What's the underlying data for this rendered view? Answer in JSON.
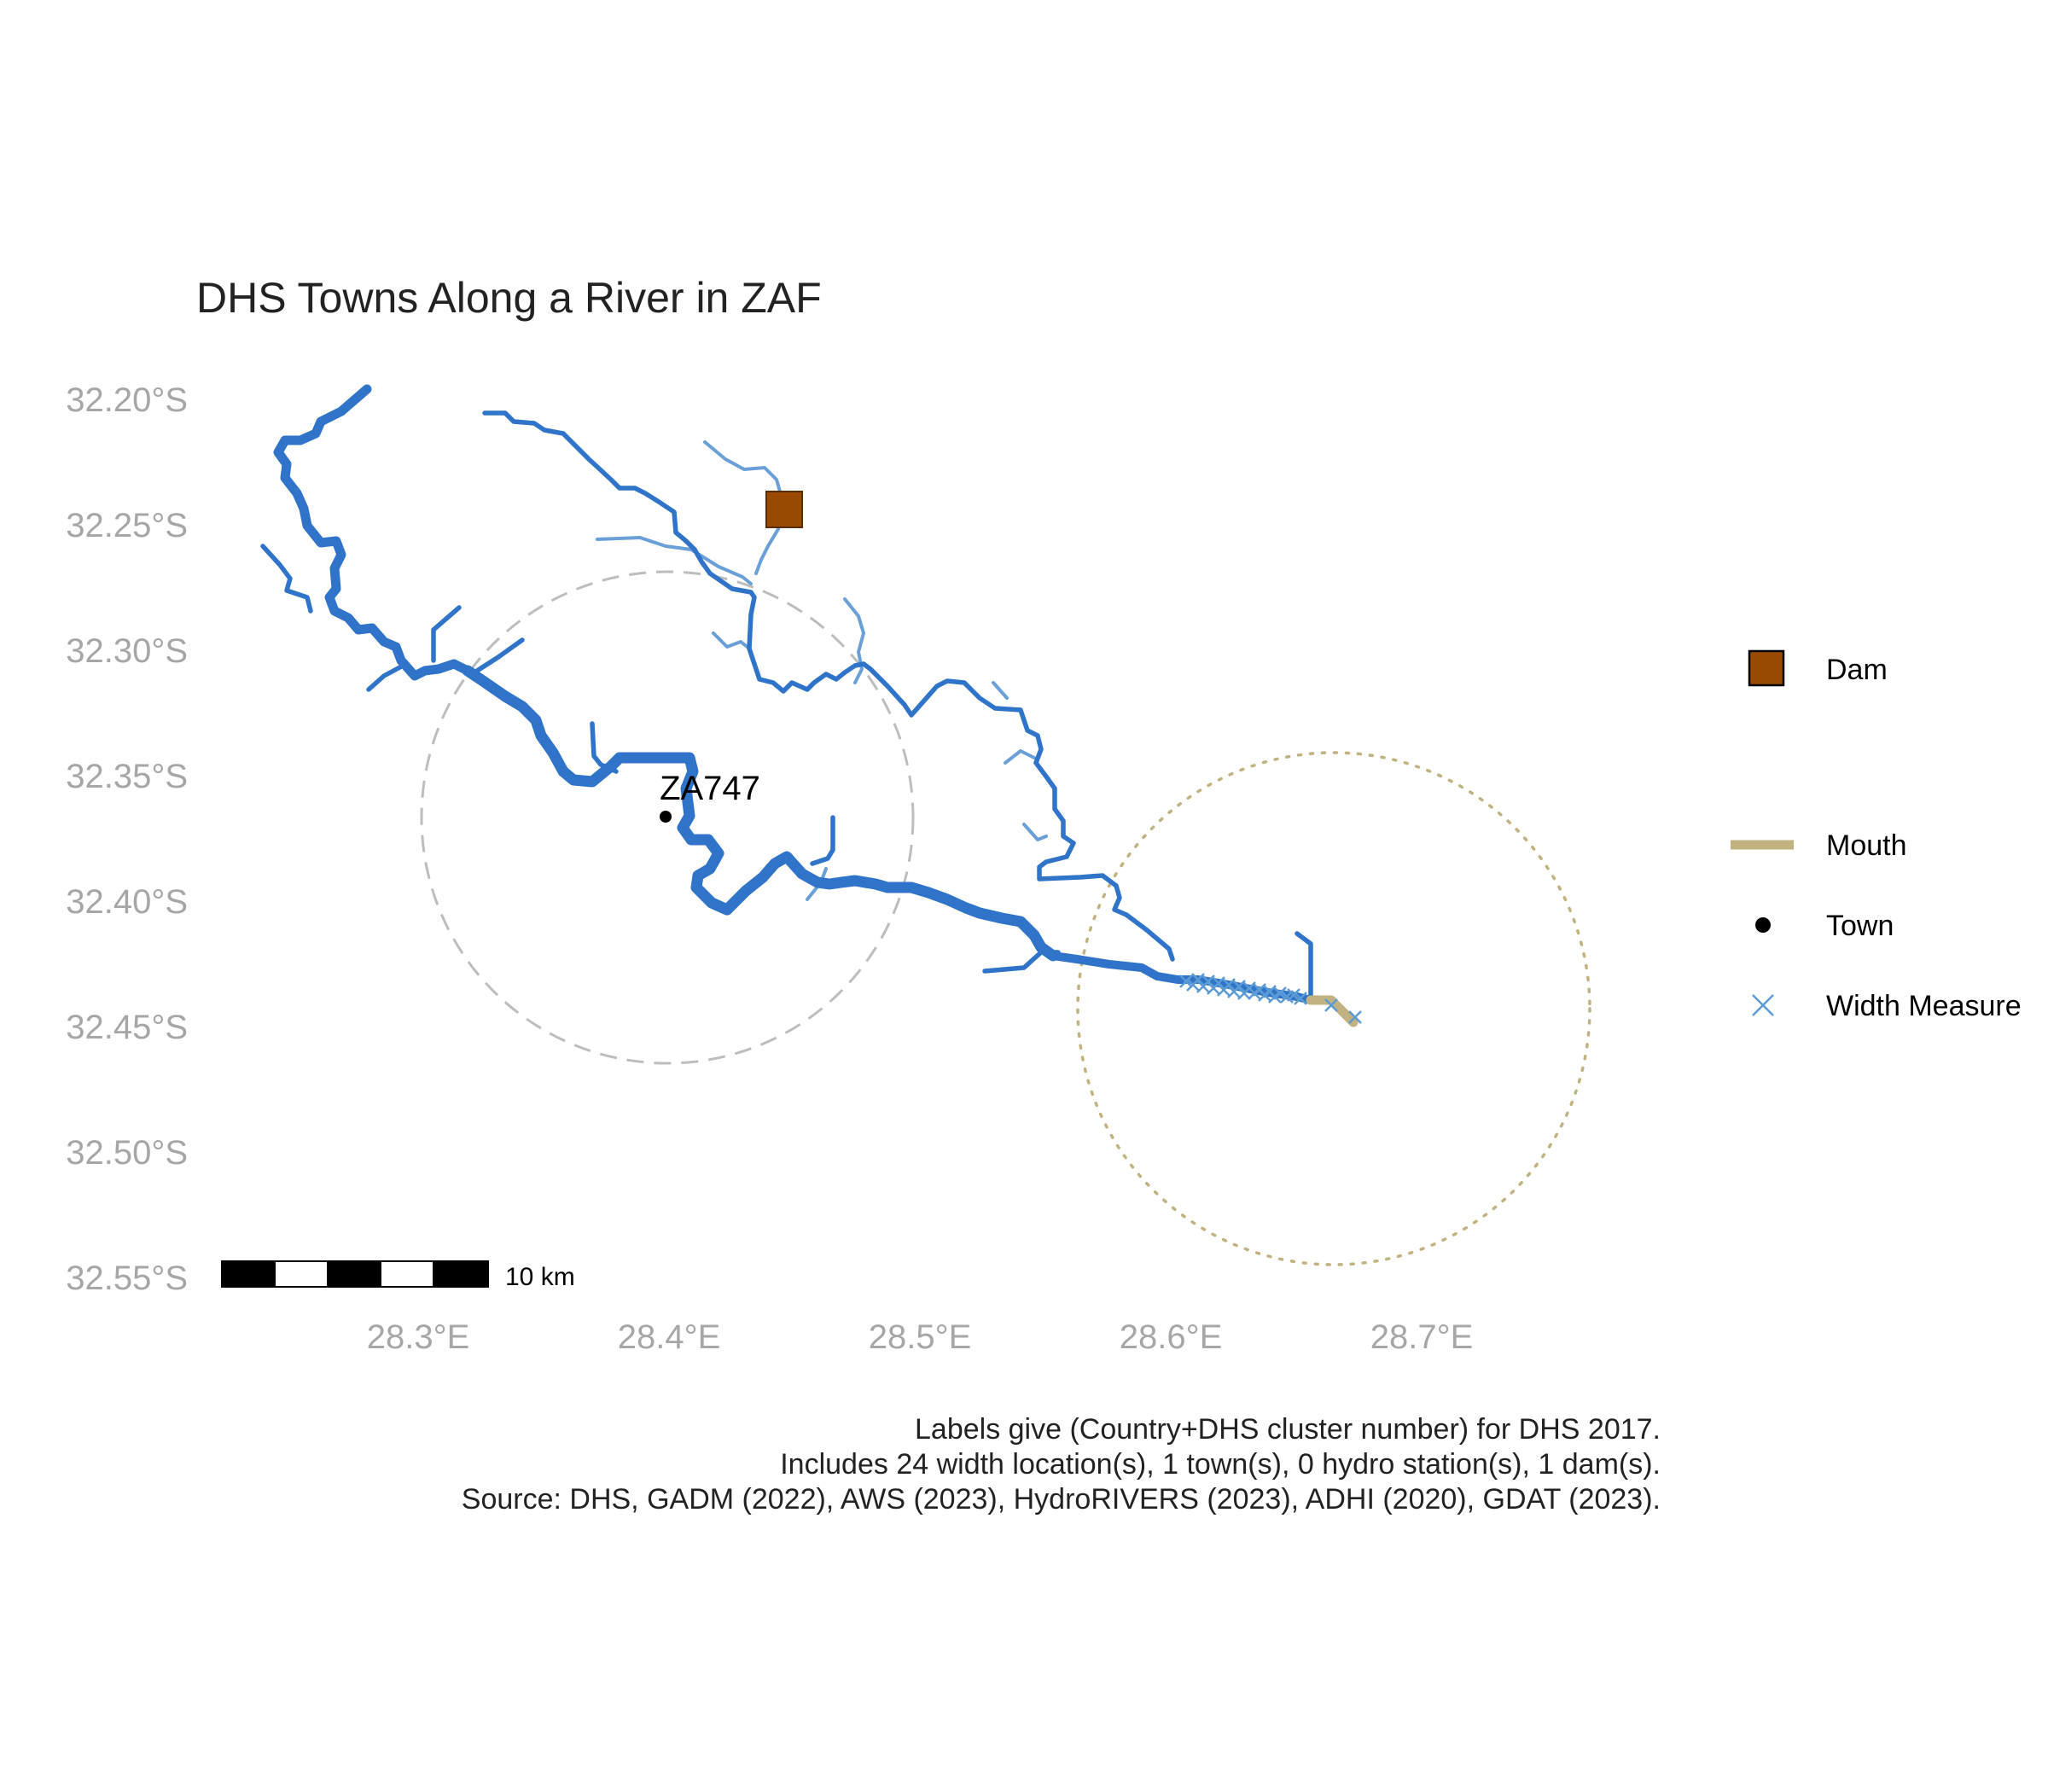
{
  "title": "DHS Towns Along a River in ZAF",
  "axes": {
    "y_ticks": [
      "32.20°S",
      "32.25°S",
      "32.30°S",
      "32.35°S",
      "32.40°S",
      "32.45°S",
      "32.50°S",
      "32.55°S"
    ],
    "x_ticks": [
      "28.3°E",
      "28.4°E",
      "28.5°E",
      "28.6°E",
      "28.7°E"
    ]
  },
  "scale_bar": {
    "label": "10 km"
  },
  "town_label": "ZA747",
  "legend": {
    "items": [
      {
        "label": "Dam",
        "symbol": "square",
        "color": "#994a00"
      },
      {
        "label": "Mouth",
        "symbol": "line",
        "color": "#c2b280"
      },
      {
        "label": "Town",
        "symbol": "dot",
        "color": "#000000"
      },
      {
        "label": "Width Measure",
        "symbol": "cross",
        "color": "#5b9bd5"
      }
    ]
  },
  "caption": [
    "Labels give (Country+DHS cluster number) for DHS 2017.",
    "Includes 24 width location(s), 1 town(s), 0 hydro station(s), 1 dam(s).",
    "Source: DHS, GADM (2022), AWS (2023), HydroRIVERS (2023), ADHI (2020), GDAT (2023)."
  ],
  "colors": {
    "river_main": "#2f74c9",
    "river_minor": "#6a9fd8",
    "mouth": "#c2b280",
    "dam": "#994a00",
    "width_measure": "#5b9bd5",
    "town_buffer": "#bdbdbd",
    "mouth_buffer": "#c2b280",
    "axis_text": "#a6a6a6"
  }
}
